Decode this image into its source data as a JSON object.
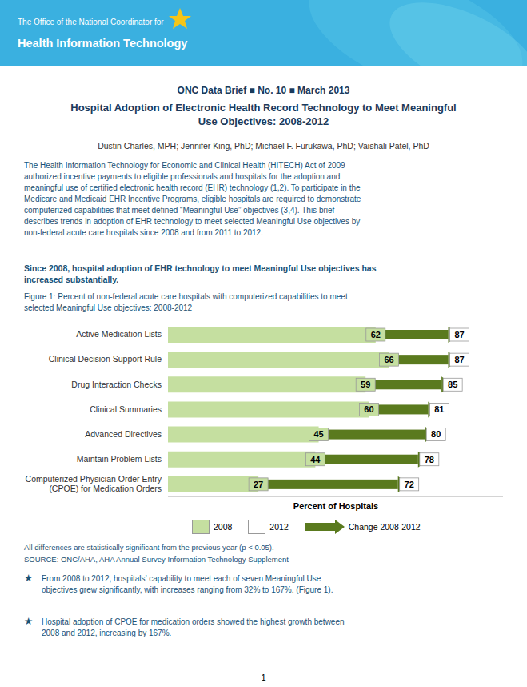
{
  "chart_data": {
    "type": "bar",
    "orientation": "horizontal",
    "title": "Figure 1: Percent of non-federal acute care hospitals with computerized capabilities to meet\nselected Meaningful Use objectives: 2008-2012",
    "xlabel": "Percent of Hospitals",
    "categories": [
      "Active Medication Lists",
      "Clinical Decision Support Rule",
      "Drug Interaction Checks",
      "Clinical Summaries",
      "Advanced Directives",
      "Maintain Problem Lists",
      "Computerized Physician Order Entry\n(CPOE) for Medication Orders"
    ],
    "series": [
      {
        "name": "2008",
        "color": "#c5dfa0",
        "values": [
          62,
          66,
          59,
          60,
          45,
          44,
          27
        ]
      },
      {
        "name": "2012",
        "color": "#ffffff",
        "values": [
          87,
          87,
          85,
          81,
          80,
          78,
          72
        ]
      }
    ],
    "color": "#5a7a1e",
    "xlim": [
      0,
      100
    ],
    "xticks": [],
    "tick_labels": "y",
    "grid": false,
    "legend": "bottom",
    "data_labels": true,
    "annotations": [
      "The Office of the National Coordinator for",
      "Health Information Technology",
      "ONC Data Brief ■ No. 10 ■ March 2013",
      "Hospital Adoption of Electronic Health Record Technology to Meet Meaningful\nUse Objectives: 2008-2012",
      "Dustin Charles, MPH; Jennifer King, PhD; Michael F. Furukawa, PhD; Vaishali Patel, PhD",
      "The Health Information Technology for Economic and Clinical Health (HITECH) Act of 2009\nauthorized incentive payments to eligible professionals and hospitals for the adoption and\nmeaningful use of certified electronic health record (EHR) technology (1,2). To participate in the\nMedicare and Medicaid EHR Incentive Programs, eligible hospitals are required to demonstrate\ncomputerized capabilities that meet defined “Meaningful Use” objectives (3,4). This brief\ndescribes trends in adoption of EHR technology to meet selected Meaningful Use objectives by\nnon-federal acute care hospitals since 2008 and from 2011 to 2012.",
      "Since 2008, hospital adoption of EHR technology to meet Meaningful Use objectives has\nincreased substantially.",
      "All differences are statistically significant from the previous year (p < 0.05).",
      "SOURCE: ONC/AHA, AHA Annual Survey Information Technology Supplement",
      "★",
      "From 2008 to 2012, hospitals’ capability to meet each of seven Meaningful Use\nobjectives grew significantly, with increases ranging from 32% to 167%. (Figure 1).",
      "Hospital adoption of CPOE for medication orders showed the highest growth between\n2008 and 2012, increasing by 167%.",
      "1",
      "Change 2008-2012"
    ]
  }
}
